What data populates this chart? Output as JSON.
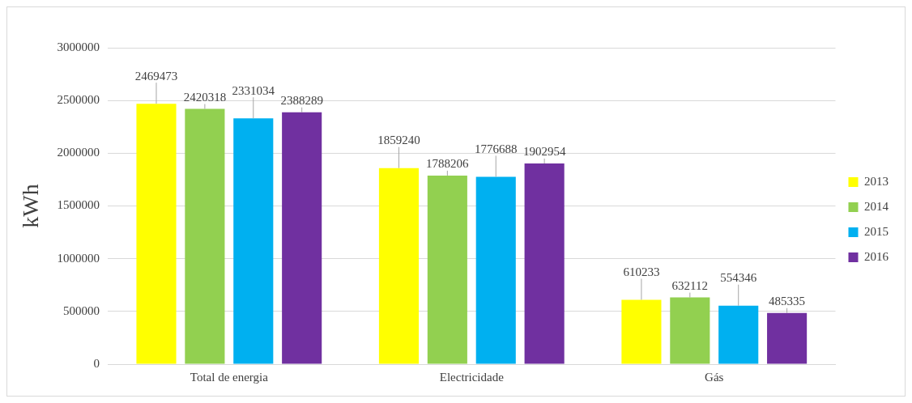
{
  "chart_data": {
    "type": "bar",
    "ylabel": "kWh",
    "categories": [
      "Total de energia",
      "Electricidade",
      "Gás"
    ],
    "series": [
      {
        "name": "2013",
        "color": "#ffff00",
        "values": [
          2469473,
          1859240,
          610233
        ]
      },
      {
        "name": "2014",
        "color": "#92d050",
        "values": [
          2420318,
          1788206,
          632112
        ]
      },
      {
        "name": "2015",
        "color": "#00b0f0",
        "values": [
          2331034,
          1776688,
          554346
        ]
      },
      {
        "name": "2016",
        "color": "#7030a0",
        "values": [
          2388289,
          1902954,
          485335
        ]
      }
    ],
    "ylim": [
      0,
      3000000
    ],
    "yticks": [
      0,
      500000,
      1000000,
      1500000,
      2000000,
      2500000,
      3000000
    ],
    "grid": "y",
    "legend": "right",
    "data_labels": true
  }
}
